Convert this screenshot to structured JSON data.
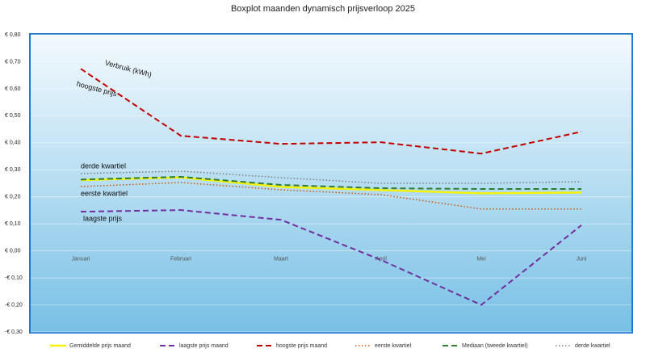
{
  "chart_data": {
    "type": "line",
    "title": "Boxplot maanden dynamisch prijsverloop 2025",
    "categories": [
      "Januari",
      "Februari",
      "Maart",
      "April",
      "Mei",
      "Juni"
    ],
    "ylim": [
      -0.3,
      0.8
    ],
    "yticks": [
      {
        "value": -0.3,
        "label": "-€ 0,30"
      },
      {
        "value": -0.2,
        "label": "-€ 0,20"
      },
      {
        "value": -0.1,
        "label": "-€ 0,10"
      },
      {
        "value": 0,
        "label": "€ 0,00"
      },
      {
        "value": 0.1,
        "label": "€ 0,10"
      },
      {
        "value": 0.2,
        "label": "€ 0,20"
      },
      {
        "value": 0.3,
        "label": "€ 0,30"
      },
      {
        "value": 0.4,
        "label": "€ 0,40"
      },
      {
        "value": 0.5,
        "label": "€ 0,50"
      },
      {
        "value": 0.6,
        "label": "€ 0,60"
      },
      {
        "value": 0.7,
        "label": "€ 0,70"
      },
      {
        "value": 0.8,
        "label": "€ 0,80"
      }
    ],
    "grid": true,
    "legend": "bottom",
    "series": [
      {
        "name": "Gemiddelde prijs maand",
        "color": "#f2f20a",
        "dash": "solid",
        "values": [
          0.262,
          0.272,
          0.237,
          0.225,
          0.213,
          0.216
        ]
      },
      {
        "name": "laagste prijs maand",
        "color": "#7030a0",
        "dash": "dashed",
        "values": [
          0.145,
          0.151,
          0.115,
          -0.034,
          -0.2,
          0.095
        ]
      },
      {
        "name": "hoogste prijs maand",
        "color": "#c00000",
        "dash": "dashed",
        "values": [
          0.674,
          0.426,
          0.396,
          0.402,
          0.36,
          0.441
        ]
      },
      {
        "name": "eerste kwartiel",
        "color": "#c55a11",
        "dash": "dotted",
        "values": [
          0.238,
          0.253,
          0.226,
          0.208,
          0.155,
          0.155
        ]
      },
      {
        "name": "Mediaan (tweede kwartiel)",
        "color": "#2e7d32",
        "dash": "dashed",
        "values": [
          0.264,
          0.274,
          0.244,
          0.232,
          0.229,
          0.229
        ]
      },
      {
        "name": "derde kwartiel",
        "color": "#7f7f7f",
        "dash": "dotted",
        "values": [
          0.286,
          0.295,
          0.271,
          0.25,
          0.25,
          0.256
        ]
      }
    ],
    "annotations": [
      "Verbruik (kWh)",
      "hoogste prijs",
      "derde kwartiel",
      "eerste kwartiel",
      "laagste prijs"
    ]
  }
}
